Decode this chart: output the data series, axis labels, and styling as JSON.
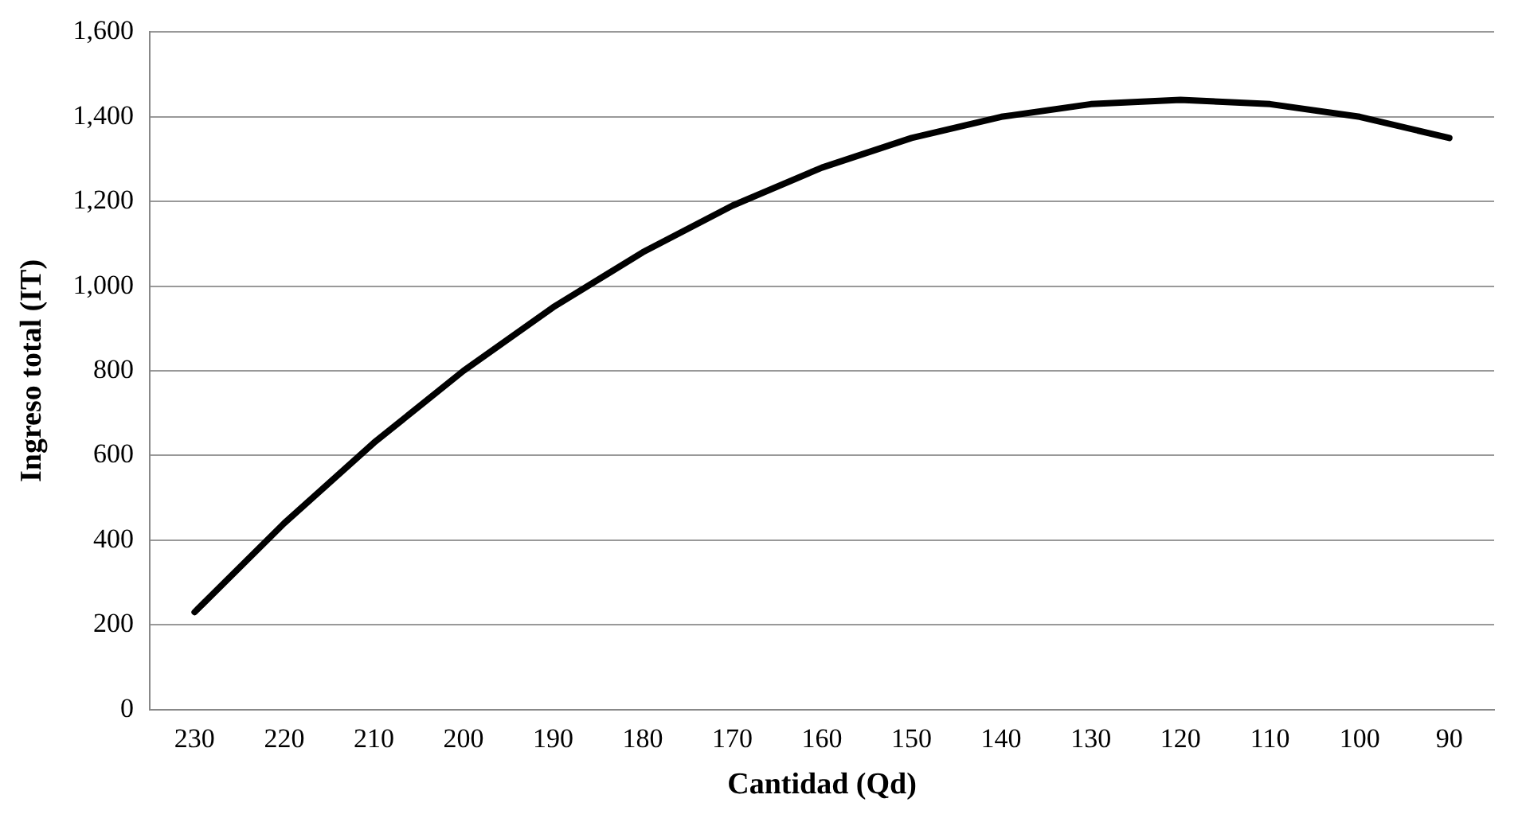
{
  "chart_data": {
    "type": "line",
    "xlabel": "Cantidad (Qd)",
    "ylabel": "Ingreso total (IT)",
    "categories": [
      "230",
      "220",
      "210",
      "200",
      "190",
      "180",
      "170",
      "160",
      "150",
      "140",
      "130",
      "120",
      "110",
      "100",
      "90"
    ],
    "series": [
      {
        "color": "#000000",
        "values": [
          230,
          440,
          630,
          800,
          950,
          1080,
          1190,
          1280,
          1350,
          1400,
          1430,
          1440,
          1430,
          1400,
          1350
        ]
      }
    ],
    "ylim": [
      0,
      1600
    ],
    "yticks": [
      0,
      200,
      400,
      600,
      800,
      {
        "value": 1000,
        "label": "1,000"
      },
      {
        "value": 1200,
        "label": "1,200"
      },
      {
        "value": 1400,
        "label": "1,400"
      },
      {
        "value": 1600,
        "label": "1,600"
      }
    ],
    "grid": "y",
    "legend": false,
    "marker": "none",
    "line_style": "solid"
  }
}
